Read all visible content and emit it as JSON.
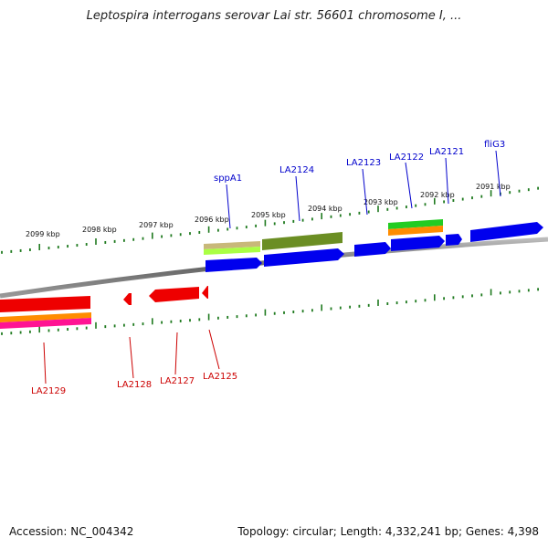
{
  "title": "Leptospira interrogans serovar Lai str. 56601 chromosome I, ...",
  "footer": {
    "accession": "Accession: NC_004342",
    "topology": "Topology: circular; Length: 4,332,241 bp; Genes: 4,398"
  },
  "colors": {
    "tick": "#1f7a1f",
    "backbone": "#777777",
    "forward_label": "#0000cc",
    "reverse_label": "#cc0000",
    "blue_gene": "#0000ee",
    "red_gene": "#ee0000",
    "olive_gene": "#6b8e23",
    "lime_gene": "#aaff44",
    "tan_gene": "#c8b87a",
    "green_gene": "#22cc22",
    "orange_gene": "#ff8c00",
    "pink_gene": "#ff1493"
  },
  "scale_labels": [
    "2099 kbp",
    "2098 kbp",
    "2097 kbp",
    "2096 kbp",
    "2095 kbp",
    "2094 kbp",
    "2093 kbp",
    "2092 kbp",
    "2091 kbp"
  ],
  "forward_genes": [
    "sppA1",
    "LA2124",
    "LA2123",
    "LA2122",
    "LA2121",
    "fliG3"
  ],
  "reverse_genes": [
    "LA2129",
    "LA2128",
    "LA2127",
    "LA2125"
  ]
}
